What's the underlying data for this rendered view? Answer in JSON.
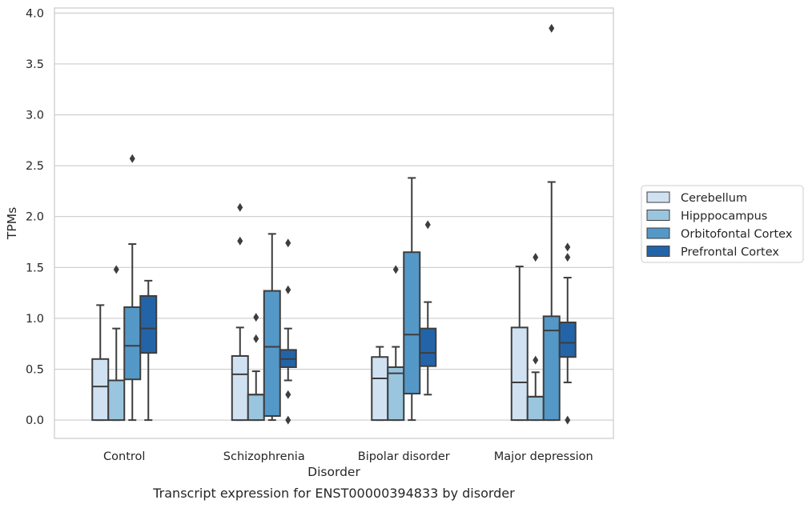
{
  "chart_data": {
    "type": "boxplot",
    "caption": "Transcript expression for ENST00000394833 by disorder",
    "xlabel": "Disorder",
    "ylabel": "TPMs",
    "ylim": [
      -0.18,
      4.05
    ],
    "yticks": [
      0.0,
      0.5,
      1.0,
      1.5,
      2.0,
      2.5,
      3.0,
      3.5,
      4.0
    ],
    "ytick_labels": [
      "0.0",
      "0.5",
      "1.0",
      "1.5",
      "2.0",
      "2.5",
      "3.0",
      "3.5",
      "4.0"
    ],
    "grid": "horizontal",
    "legend_placement": "right",
    "categories": [
      "Control",
      "Schizophrenia",
      "Bipolar disorder",
      "Major depression"
    ],
    "series": [
      {
        "name": "Cerebellum",
        "color": "#d0e1f2",
        "boxes": [
          {
            "whisker_low": 0.0,
            "q1": 0.0,
            "median": 0.33,
            "q3": 0.6,
            "whisker_high": 1.13,
            "outliers": []
          },
          {
            "whisker_low": 0.0,
            "q1": 0.0,
            "median": 0.45,
            "q3": 0.63,
            "whisker_high": 0.91,
            "outliers": [
              1.76,
              2.09
            ]
          },
          {
            "whisker_low": 0.0,
            "q1": 0.0,
            "median": 0.41,
            "q3": 0.62,
            "whisker_high": 0.72,
            "outliers": []
          },
          {
            "whisker_low": 0.0,
            "q1": 0.0,
            "median": 0.37,
            "q3": 0.91,
            "whisker_high": 1.51,
            "outliers": []
          }
        ]
      },
      {
        "name": "Hipppocampus",
        "color": "#9ac5de",
        "boxes": [
          {
            "whisker_low": 0.0,
            "q1": 0.0,
            "median": 0.39,
            "q3": 0.39,
            "whisker_high": 0.9,
            "outliers": [
              1.48
            ]
          },
          {
            "whisker_low": 0.0,
            "q1": 0.0,
            "median": 0.25,
            "q3": 0.25,
            "whisker_high": 0.48,
            "outliers": [
              0.8,
              1.01
            ]
          },
          {
            "whisker_low": 0.0,
            "q1": 0.0,
            "median": 0.46,
            "q3": 0.52,
            "whisker_high": 0.72,
            "outliers": [
              1.48
            ]
          },
          {
            "whisker_low": 0.0,
            "q1": 0.0,
            "median": 0.23,
            "q3": 0.23,
            "whisker_high": 0.47,
            "outliers": [
              0.59,
              1.6
            ]
          }
        ]
      },
      {
        "name": "Orbitofontal Cortex",
        "color": "#5498c8",
        "boxes": [
          {
            "whisker_low": 0.0,
            "q1": 0.4,
            "median": 0.73,
            "q3": 1.11,
            "whisker_high": 1.73,
            "outliers": [
              2.57
            ]
          },
          {
            "whisker_low": 0.0,
            "q1": 0.04,
            "median": 0.72,
            "q3": 1.27,
            "whisker_high": 1.83,
            "outliers": []
          },
          {
            "whisker_low": 0.0,
            "q1": 0.26,
            "median": 0.84,
            "q3": 1.65,
            "whisker_high": 2.38,
            "outliers": []
          },
          {
            "whisker_low": 0.0,
            "q1": 0.0,
            "median": 0.88,
            "q3": 1.02,
            "whisker_high": 2.34,
            "outliers": [
              3.85
            ]
          }
        ]
      },
      {
        "name": "Prefrontal Cortex",
        "color": "#2364a8",
        "boxes": [
          {
            "whisker_low": 0.0,
            "q1": 0.66,
            "median": 0.9,
            "q3": 1.22,
            "whisker_high": 1.37,
            "outliers": []
          },
          {
            "whisker_low": 0.39,
            "q1": 0.52,
            "median": 0.6,
            "q3": 0.69,
            "whisker_high": 0.9,
            "outliers": [
              0.0,
              0.25,
              1.28,
              1.74
            ]
          },
          {
            "whisker_low": 0.25,
            "q1": 0.53,
            "median": 0.66,
            "q3": 0.9,
            "whisker_high": 1.16,
            "outliers": [
              1.92
            ]
          },
          {
            "whisker_low": 0.37,
            "q1": 0.62,
            "median": 0.76,
            "q3": 0.96,
            "whisker_high": 1.4,
            "outliers": [
              0.0,
              1.6,
              1.7
            ]
          }
        ]
      }
    ]
  }
}
